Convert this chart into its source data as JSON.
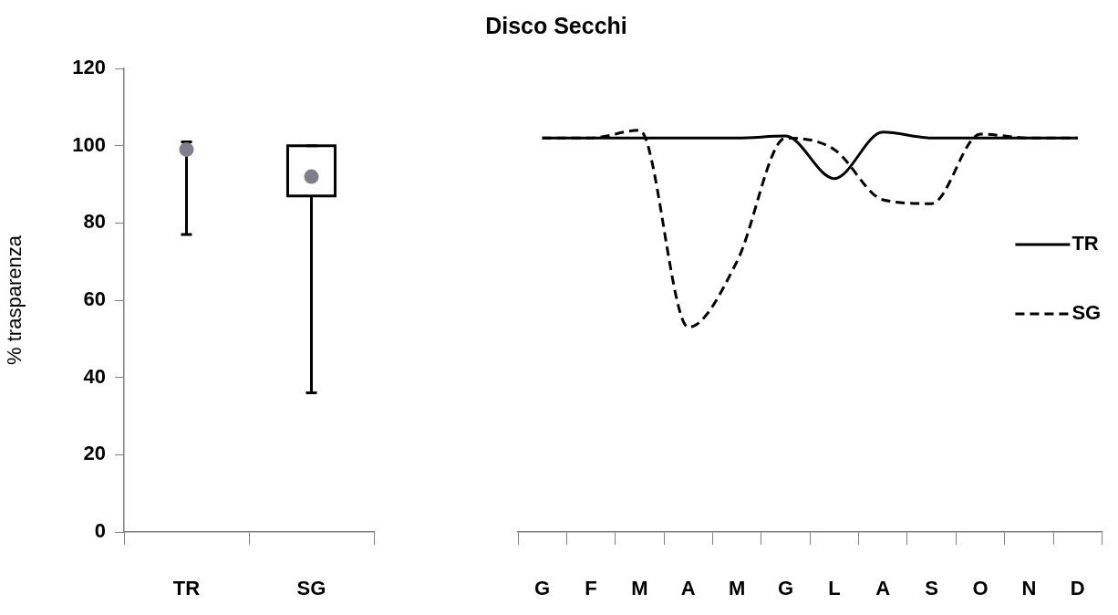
{
  "chart_data": [
    {
      "type": "box",
      "ylabel": "% trasparenza",
      "categories": [
        "TR",
        "SG"
      ],
      "color": "#000000",
      "boxes": [
        {
          "low": 77,
          "q1": 101,
          "q3": 101,
          "high": 101,
          "mean": 99
        },
        {
          "low": 36,
          "q1": 87,
          "q3": 100,
          "high": 100,
          "mean": 92
        }
      ],
      "ylim": [
        0,
        120
      ],
      "yticks": [
        0,
        20,
        40,
        60,
        80,
        100,
        120
      ],
      "grid": false
    },
    {
      "type": "line",
      "title": "Disco Secchi",
      "categories": [
        "G",
        "F",
        "M",
        "A",
        "M",
        "G",
        "L",
        "A",
        "S",
        "O",
        "N",
        "D"
      ],
      "series": [
        {
          "name": "TR",
          "color": "#000000",
          "line_style": "solid",
          "values": [
            102,
            102,
            102,
            102,
            102,
            102.5,
            91.5,
            103.5,
            102,
            102,
            102,
            102
          ]
        },
        {
          "name": "SG",
          "color": "#000000",
          "line_style": "dashed",
          "values": [
            102,
            102,
            104,
            53,
            70,
            102,
            99,
            86,
            85,
            103,
            102,
            102
          ]
        }
      ],
      "ylim": [
        0,
        120
      ],
      "tick_labels": "x",
      "legend": "right",
      "marker": "none",
      "grid": false
    }
  ]
}
